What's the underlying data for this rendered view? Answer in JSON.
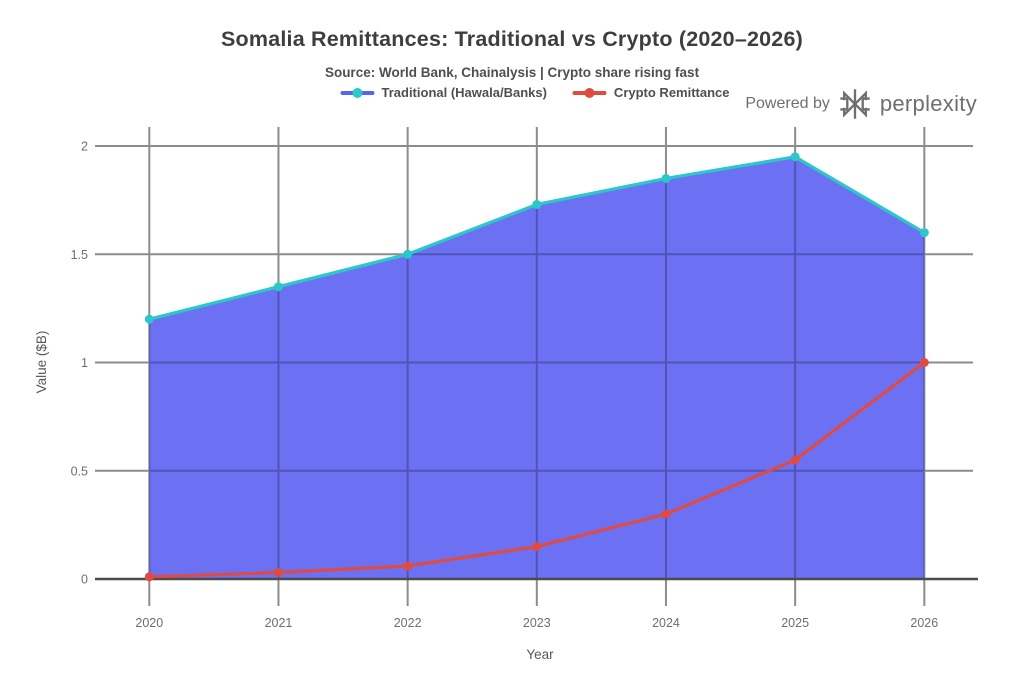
{
  "header": {
    "title": "Somalia Remittances: Traditional vs Crypto (2020–2026)",
    "subtitle": "Source: World Bank, Chainalysis | Crypto share rising fast",
    "powered_by": {
      "prefix": "Powered by",
      "brand": "perplexity"
    }
  },
  "legend": [
    {
      "label": "Traditional (Hawala/Banks)",
      "line_color": "#5a63f0",
      "marker_color": "#2cc7c9"
    },
    {
      "label": "Crypto Remittance",
      "line_color": "#e04b41",
      "marker_color": "#e04b41"
    }
  ],
  "chart_data": {
    "type": "area",
    "title": "Somalia Remittances: Traditional vs Crypto (2020–2026)",
    "subtitle": "Source: World Bank, Chainalysis | Crypto share rising fast",
    "x": [
      "2020",
      "2021",
      "2022",
      "2023",
      "2024",
      "2025",
      "2026"
    ],
    "series": [
      {
        "name": "Traditional (Hawala/Banks)",
        "type": "area",
        "values": [
          1.2,
          1.35,
          1.5,
          1.73,
          1.85,
          1.95,
          1.6
        ],
        "fill_color": "#5c62f3",
        "fill_opacity": 0.9,
        "line_color": "#2cc7c9"
      },
      {
        "name": "Crypto Remittance",
        "type": "line",
        "values": [
          0.01,
          0.03,
          0.06,
          0.15,
          0.3,
          0.55,
          1.0
        ],
        "line_color": "#e04b41"
      }
    ],
    "xlabel": "Year",
    "ylabel": "Value ($B)",
    "ylim": [
      0,
      2
    ],
    "yticks": [
      0,
      0.5,
      1,
      1.5,
      2
    ],
    "ytick_labels": [
      "0",
      "0.5",
      "1",
      "1.5",
      "2"
    ],
    "grid": true,
    "legend_position": "top-center"
  },
  "colors": {
    "background": "#ffffff",
    "grid": "#8c8c8c",
    "axis_line": "#4c4c4c",
    "title_text": "#3e3e3e",
    "body_text": "#4f4f4f",
    "tick_text": "#6e6e6e",
    "powered_text": "#6f6f6f"
  }
}
